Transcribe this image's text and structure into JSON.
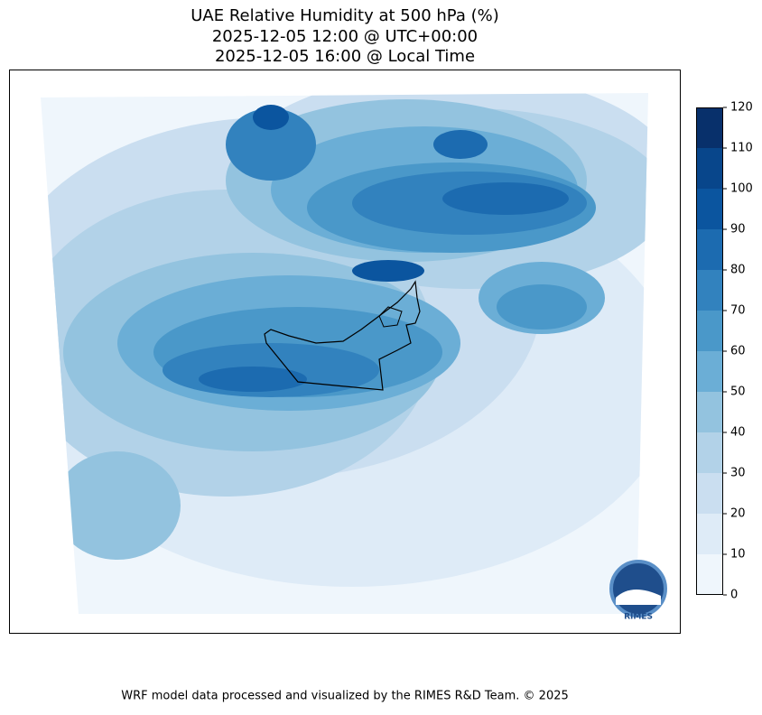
{
  "title": [
    "UAE Relative Humidity at 500 hPa (%)",
    "2025-12-05 12:00 @ UTC+00:00",
    "2025-12-05 16:00 @ Local Time"
  ],
  "colorbar": {
    "levels": [
      0,
      10,
      20,
      30,
      40,
      50,
      60,
      70,
      80,
      90,
      100,
      110,
      120
    ],
    "colors": [
      "#eff6fc",
      "#deebf7",
      "#cadef0",
      "#b2d2e8",
      "#93c3df",
      "#6baed6",
      "#4a98c9",
      "#3282be",
      "#1c6bb0",
      "#0b559f",
      "#08468b",
      "#08306b"
    ]
  },
  "logo": "RIMES",
  "footer": "WRF model data processed and visualized by the RIMES R&D Team. © 2025"
}
